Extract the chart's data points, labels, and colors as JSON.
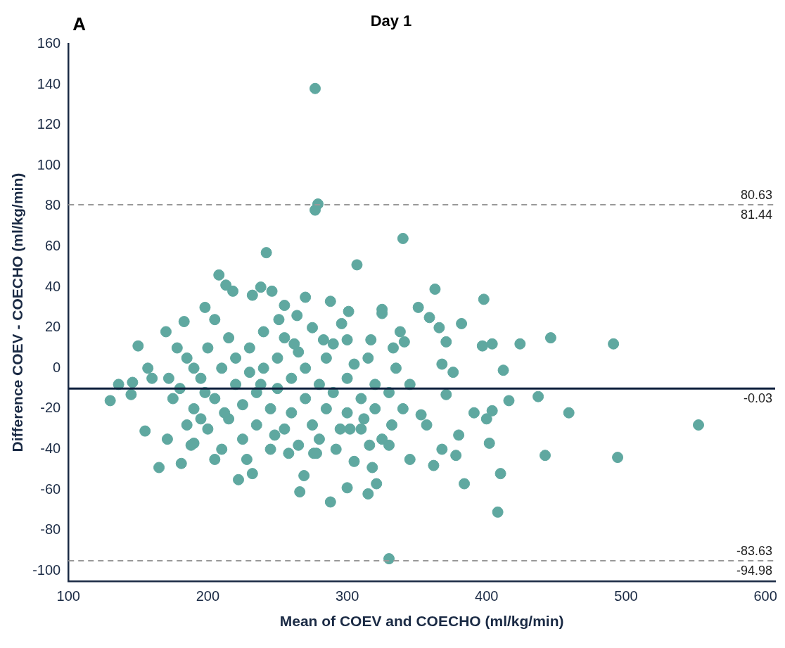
{
  "chart_data": {
    "type": "scatter",
    "title": "Day 1",
    "xlabel": "Mean of COEV and COECHO (ml/kg/min)",
    "ylabel": "Difference COEV - COECHO (ml/kg/min)",
    "xlim": [
      100,
      607
    ],
    "xticks": [
      100,
      200,
      300,
      400,
      500,
      600
    ],
    "ylim": [
      -105,
      160
    ],
    "yticks": [
      -100,
      -80,
      -60,
      -40,
      -20,
      0,
      20,
      40,
      60,
      80,
      100,
      120,
      140,
      160
    ],
    "grid": false,
    "legend": false,
    "marker": "circle",
    "series": [
      {
        "color": "#5fa8a0",
        "x": [
          277,
          279,
          277,
          242,
          340,
          307,
          363,
          398,
          208,
          446,
          491,
          552,
          494,
          408,
          330,
          288,
          266,
          315,
          300,
          410,
          384,
          442,
          459,
          437,
          416,
          412,
          424,
          404,
          397,
          382,
          366,
          371,
          376,
          368,
          351,
          359,
          371,
          391,
          400,
          404,
          402,
          380,
          378,
          362,
          357,
          368,
          353,
          345,
          165,
          130,
          136,
          150,
          155,
          171,
          181,
          190,
          222,
          232,
          269,
          276,
          330,
          321,
          332,
          318,
          305,
          341,
          338,
          325,
          325,
          301,
          296,
          288,
          270,
          264,
          255,
          246,
          218,
          213,
          198,
          205,
          170,
          160,
          157,
          146,
          145,
          183,
          238,
          232,
          251,
          283,
          300,
          317,
          333,
          180,
          185,
          190,
          195,
          200,
          200,
          205,
          210,
          210,
          215,
          215,
          220,
          220,
          225,
          225,
          230,
          230,
          235,
          235,
          240,
          240,
          245,
          245,
          250,
          250,
          255,
          255,
          260,
          260,
          265,
          265,
          270,
          270,
          275,
          275,
          280,
          280,
          285,
          285,
          290,
          290,
          295,
          300,
          300,
          305,
          310,
          310,
          315,
          320,
          320,
          325,
          330,
          335,
          340,
          345,
          190,
          195,
          205,
          185,
          175,
          172,
          178,
          188,
          198,
          212,
          228,
          238,
          248,
          258,
          262,
          278,
          292,
          302,
          312,
          316
        ],
        "values": [
          138,
          81,
          78,
          57,
          64,
          51,
          39,
          34,
          46,
          15,
          12,
          -28,
          -44,
          -71,
          -94,
          -66,
          -61,
          -62,
          -59,
          -52,
          -57,
          -43,
          -22,
          -14,
          -16,
          -1,
          12,
          12,
          11,
          22,
          20,
          13,
          -2,
          2,
          30,
          25,
          -13,
          -22,
          -25,
          -21,
          -37,
          -33,
          -43,
          -48,
          -28,
          -40,
          -23,
          -45,
          -49,
          -16,
          -8,
          11,
          -31,
          -35,
          -47,
          -37,
          -55,
          -52,
          -53,
          -42,
          -38,
          -57,
          -28,
          -49,
          -46,
          13,
          18,
          29,
          27,
          28,
          22,
          33,
          35,
          26,
          31,
          38,
          38,
          41,
          30,
          24,
          18,
          -5,
          0,
          -7,
          -13,
          23,
          40,
          36,
          24,
          14,
          14,
          14,
          10,
          -10,
          5,
          -20,
          -5,
          10,
          -30,
          -15,
          0,
          -40,
          15,
          -25,
          -8,
          5,
          -35,
          -18,
          10,
          -2,
          -28,
          -12,
          18,
          0,
          -40,
          -20,
          5,
          -10,
          -30,
          15,
          -5,
          -22,
          8,
          -38,
          -15,
          0,
          20,
          -28,
          -8,
          -35,
          5,
          -20,
          -12,
          12,
          -30,
          -5,
          -22,
          2,
          -15,
          -30,
          5,
          -20,
          -8,
          -35,
          -12,
          0,
          -20,
          -8,
          0,
          -25,
          -45,
          -28,
          -15,
          -5,
          10,
          -38,
          -12,
          -22,
          -45,
          -8,
          -33,
          -42,
          12,
          -42,
          -40,
          -30,
          -25,
          -38
        ]
      }
    ],
    "ref_lines": [
      {
        "axis": "y",
        "value": 80.63,
        "label": "80.63",
        "color": "#999999",
        "line_style": "dashed"
      },
      {
        "axis": "y",
        "value": -10,
        "color": "#0d1f3c",
        "line_style": "solid"
      },
      {
        "axis": "y",
        "value": -94.98,
        "label": "-94.98",
        "color": "#999999",
        "line_style": "dashed"
      }
    ],
    "annotations": [
      "A",
      {
        "text": "81.44",
        "y": 80.63
      },
      {
        "text": "-0.03",
        "y": -10
      },
      {
        "text": "-83.63",
        "y": -94.98
      }
    ]
  }
}
